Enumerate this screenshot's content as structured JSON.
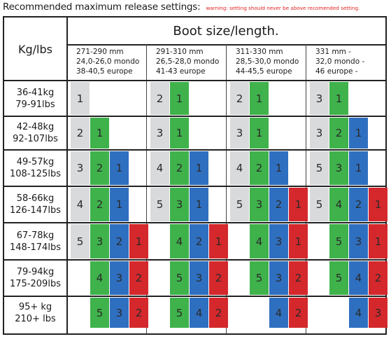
{
  "header": {
    "title": "Recommended maximum release settings:",
    "warning": "warning: setting should never be above recomended setting."
  },
  "table": {
    "weight_header": "Kg/lbs",
    "boot_header": "Boot size/length.",
    "boot_columns": [
      {
        "lines": [
          "271-290 mm",
          "24,0-26,0 mondo",
          "38-40,5 europe"
        ]
      },
      {
        "lines": [
          "291-310 mm",
          "26,5-28,0 mondo",
          "41-43 europe"
        ]
      },
      {
        "lines": [
          "311-330 mm",
          "28,5-30,0 mondo",
          "44-45,5 europe"
        ]
      },
      {
        "lines": [
          "331 mm -",
          "32,0 mondo -",
          "46 europe -"
        ]
      }
    ],
    "rows": [
      {
        "kg": "36-41kg",
        "lbs": "79-91lbs",
        "groups": [
          [
            {
              "v": "1",
              "c": "grey"
            }
          ],
          [
            {
              "v": "2",
              "c": "grey"
            },
            {
              "v": "1",
              "c": "green"
            }
          ],
          [
            {
              "v": "2",
              "c": "grey"
            },
            {
              "v": "1",
              "c": "green"
            }
          ],
          [
            {
              "v": "3",
              "c": "grey"
            },
            {
              "v": "1",
              "c": "green"
            }
          ]
        ]
      },
      {
        "kg": "42-48kg",
        "lbs": "92-107lbs",
        "groups": [
          [
            {
              "v": "2",
              "c": "grey"
            },
            {
              "v": "1",
              "c": "green"
            }
          ],
          [
            {
              "v": "3",
              "c": "grey"
            },
            {
              "v": "1",
              "c": "green"
            }
          ],
          [
            {
              "v": "3",
              "c": "grey"
            },
            {
              "v": "1",
              "c": "green"
            }
          ],
          [
            {
              "v": "3",
              "c": "grey"
            },
            {
              "v": "2",
              "c": "green"
            },
            {
              "v": "1",
              "c": "blue"
            }
          ]
        ]
      },
      {
        "kg": "49-57kg",
        "lbs": "108-125lbs",
        "groups": [
          [
            {
              "v": "3",
              "c": "grey"
            },
            {
              "v": "2",
              "c": "green"
            },
            {
              "v": "1",
              "c": "blue"
            }
          ],
          [
            {
              "v": "4",
              "c": "grey"
            },
            {
              "v": "2",
              "c": "green"
            },
            {
              "v": "1",
              "c": "blue"
            }
          ],
          [
            {
              "v": "4",
              "c": "grey"
            },
            {
              "v": "2",
              "c": "green"
            },
            {
              "v": "1",
              "c": "blue"
            }
          ],
          [
            {
              "v": "5",
              "c": "grey"
            },
            {
              "v": "3",
              "c": "green"
            },
            {
              "v": "1",
              "c": "blue"
            }
          ]
        ]
      },
      {
        "kg": "58-66kg",
        "lbs": "126-147lbs",
        "groups": [
          [
            {
              "v": "4",
              "c": "grey"
            },
            {
              "v": "2",
              "c": "green"
            },
            {
              "v": "1",
              "c": "blue"
            }
          ],
          [
            {
              "v": "5",
              "c": "grey"
            },
            {
              "v": "3",
              "c": "green"
            },
            {
              "v": "1",
              "c": "blue"
            }
          ],
          [
            {
              "v": "5",
              "c": "grey"
            },
            {
              "v": "3",
              "c": "green"
            },
            {
              "v": "2",
              "c": "blue"
            },
            {
              "v": "1",
              "c": "red"
            }
          ],
          [
            {
              "v": "5",
              "c": "grey"
            },
            {
              "v": "4",
              "c": "green"
            },
            {
              "v": "2",
              "c": "blue"
            },
            {
              "v": "1",
              "c": "red"
            }
          ]
        ]
      },
      {
        "kg": "67-78kg",
        "lbs": "148-174lbs",
        "groups": [
          [
            {
              "v": "5",
              "c": "grey"
            },
            {
              "v": "3",
              "c": "green"
            },
            {
              "v": "2",
              "c": "blue"
            },
            {
              "v": "1",
              "c": "red"
            }
          ],
          [
            {
              "v": "",
              "c": "none"
            },
            {
              "v": "4",
              "c": "green"
            },
            {
              "v": "2",
              "c": "blue"
            },
            {
              "v": "1",
              "c": "red"
            }
          ],
          [
            {
              "v": "",
              "c": "none"
            },
            {
              "v": "4",
              "c": "green"
            },
            {
              "v": "3",
              "c": "blue"
            },
            {
              "v": "1",
              "c": "red"
            }
          ],
          [
            {
              "v": "",
              "c": "none"
            },
            {
              "v": "5",
              "c": "green"
            },
            {
              "v": "3",
              "c": "blue"
            },
            {
              "v": "1",
              "c": "red"
            }
          ]
        ]
      },
      {
        "kg": "79-94kg",
        "lbs": "175-209lbs",
        "groups": [
          [
            {
              "v": "",
              "c": "none"
            },
            {
              "v": "4",
              "c": "green"
            },
            {
              "v": "3",
              "c": "blue"
            },
            {
              "v": "2",
              "c": "red"
            }
          ],
          [
            {
              "v": "",
              "c": "none"
            },
            {
              "v": "5",
              "c": "green"
            },
            {
              "v": "3",
              "c": "blue"
            },
            {
              "v": "2",
              "c": "red"
            }
          ],
          [
            {
              "v": "",
              "c": "none"
            },
            {
              "v": "5",
              "c": "green"
            },
            {
              "v": "3",
              "c": "blue"
            },
            {
              "v": "2",
              "c": "red"
            }
          ],
          [
            {
              "v": "",
              "c": "none"
            },
            {
              "v": "5",
              "c": "green"
            },
            {
              "v": "4",
              "c": "blue"
            },
            {
              "v": "2",
              "c": "red"
            }
          ]
        ]
      },
      {
        "kg": "95+ kg",
        "lbs": "210+ lbs",
        "groups": [
          [
            {
              "v": "",
              "c": "none"
            },
            {
              "v": "5",
              "c": "green"
            },
            {
              "v": "3",
              "c": "blue"
            },
            {
              "v": "2",
              "c": "red"
            }
          ],
          [
            {
              "v": "",
              "c": "none"
            },
            {
              "v": "5",
              "c": "green"
            },
            {
              "v": "4",
              "c": "blue"
            },
            {
              "v": "2",
              "c": "red"
            }
          ],
          [
            {
              "v": "",
              "c": "none"
            },
            {
              "v": "",
              "c": "none"
            },
            {
              "v": "4",
              "c": "blue"
            },
            {
              "v": "2",
              "c": "red"
            }
          ],
          [
            {
              "v": "",
              "c": "none"
            },
            {
              "v": "",
              "c": "none"
            },
            {
              "v": "4",
              "c": "blue"
            },
            {
              "v": "3",
              "c": "red"
            }
          ]
        ]
      }
    ]
  },
  "colors": {
    "grey": "#d9dadc",
    "green": "#3fb24b",
    "blue": "#2f6fc0",
    "red": "#d4282c",
    "warning_text": "#e02020"
  }
}
